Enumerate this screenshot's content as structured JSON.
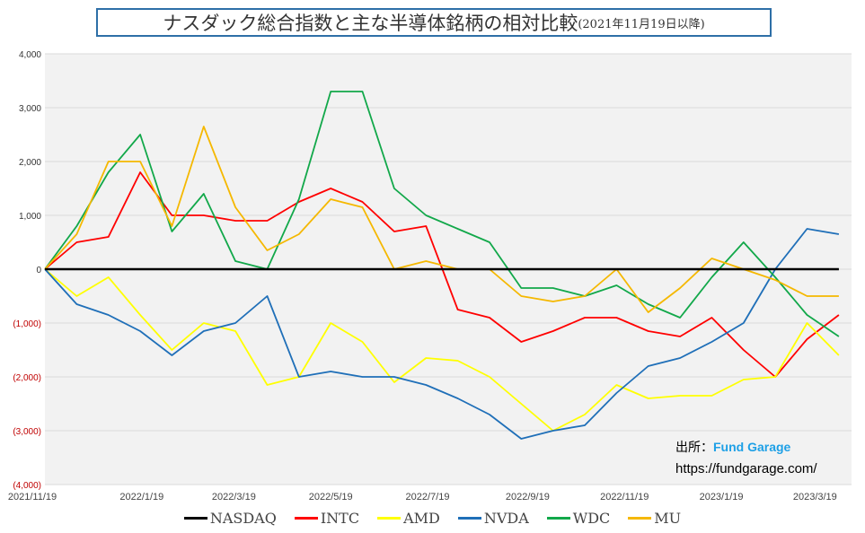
{
  "chart_data": {
    "type": "line",
    "title": "ナスダック総合指数と主な半導体銘柄の相対比較",
    "subtitle": "(2021年11月19日以降)",
    "xlabel": "",
    "ylabel": "",
    "ylim": [
      -4000,
      4000
    ],
    "yticks": [
      "4,000",
      "3,000",
      "2,000",
      "1,000",
      "0",
      "(1,000)",
      "(2,000)",
      "(3,000)",
      "(4,000)"
    ],
    "ytick_values": [
      4000,
      3000,
      2000,
      1000,
      0,
      -1000,
      -2000,
      -3000,
      -4000
    ],
    "xticks": [
      "2021/11/19",
      "2022/1/19",
      "2022/3/19",
      "2022/5/19",
      "2022/7/19",
      "2022/9/19",
      "2022/11/19",
      "2023/1/19",
      "2023/3/19"
    ],
    "xtick_days": [
      0,
      61,
      119,
      180,
      241,
      304,
      365,
      426,
      485
    ],
    "xlim_days": [
      0,
      508
    ],
    "x_days": [
      0,
      20,
      40,
      60,
      80,
      100,
      120,
      140,
      160,
      180,
      200,
      220,
      240,
      260,
      280,
      300,
      320,
      340,
      360,
      380,
      400,
      420,
      440,
      460,
      480,
      500
    ],
    "grid": true,
    "legend_position": "bottom",
    "series": [
      {
        "name": "NASDAQ",
        "color": "#000000",
        "values": [
          0,
          0,
          0,
          0,
          0,
          0,
          0,
          0,
          0,
          0,
          0,
          0,
          0,
          0,
          0,
          0,
          0,
          0,
          0,
          0,
          0,
          0,
          0,
          0,
          0,
          0
        ]
      },
      {
        "name": "INTC",
        "color": "#ff0000",
        "values": [
          0,
          500,
          600,
          1800,
          1000,
          1000,
          900,
          900,
          1250,
          1500,
          1250,
          700,
          800,
          -750,
          -900,
          -1350,
          -1150,
          -900,
          -900,
          -1150,
          -1250,
          -900,
          -1500,
          -2000,
          -1300,
          -850
        ]
      },
      {
        "name": "AMD",
        "color": "#ffff00",
        "values": [
          0,
          -500,
          -150,
          -850,
          -1500,
          -1000,
          -1150,
          -2150,
          -2000,
          -1000,
          -1350,
          -2100,
          -1650,
          -1700,
          -2000,
          -2500,
          -3000,
          -2700,
          -2150,
          -2400,
          -2350,
          -2350,
          -2050,
          -2000,
          -1000,
          -1600
        ]
      },
      {
        "name": "NVDA",
        "color": "#1f6fb8",
        "values": [
          0,
          -650,
          -850,
          -1150,
          -1600,
          -1150,
          -1000,
          -500,
          -2000,
          -1900,
          -2000,
          -2000,
          -2150,
          -2400,
          -2700,
          -3150,
          -3000,
          -2900,
          -2300,
          -1800,
          -1650,
          -1350,
          -1000,
          0,
          750,
          650
        ]
      },
      {
        "name": "WDC",
        "color": "#12a84a",
        "values": [
          0,
          800,
          1800,
          2500,
          700,
          1400,
          150,
          0,
          1300,
          3300,
          3300,
          1500,
          1000,
          750,
          500,
          -350,
          -350,
          -500,
          -300,
          -650,
          -900,
          -150,
          500,
          -150,
          -850,
          -1250
        ]
      },
      {
        "name": "MU",
        "color": "#f5b800",
        "values": [
          0,
          650,
          2000,
          2000,
          800,
          2650,
          1150,
          350,
          650,
          1300,
          1150,
          0,
          150,
          0,
          0,
          -500,
          -600,
          -500,
          0,
          -800,
          -350,
          200,
          0,
          -200,
          -500,
          -500
        ]
      }
    ]
  },
  "source": {
    "label": "出所：",
    "name": "Fund Garage",
    "url": "https://fundgarage.com/"
  }
}
